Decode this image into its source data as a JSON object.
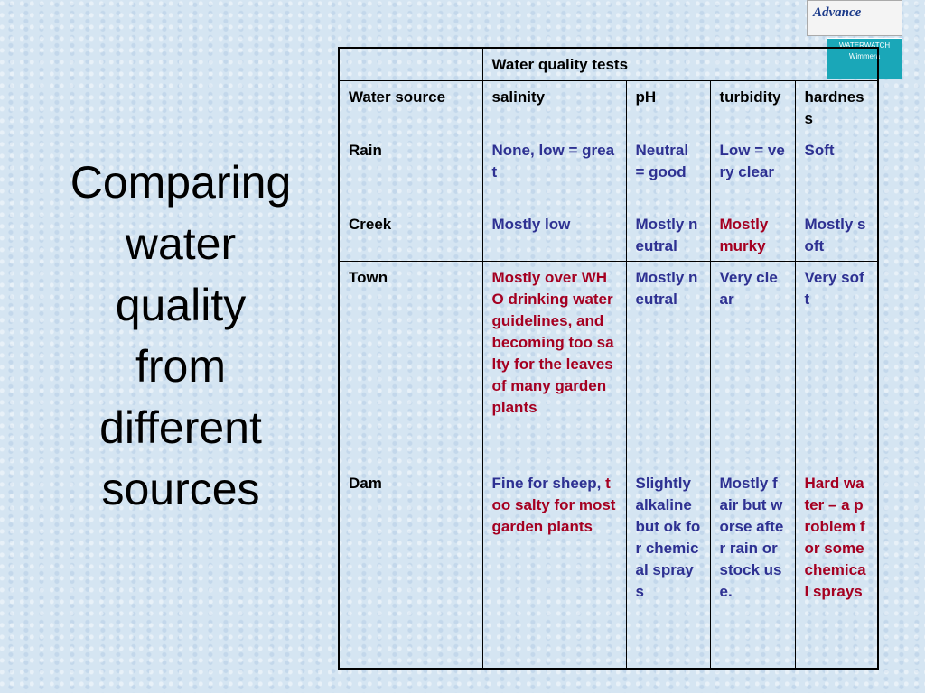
{
  "slide": {
    "title_lines": [
      "Comparing",
      "water",
      "quality",
      "from",
      "different",
      "sources"
    ],
    "logos": {
      "advance": "Advance",
      "waterwatch": "WATERWATCH",
      "region": "Wimmera"
    },
    "table": {
      "group_header": "Water quality tests",
      "columns": [
        "Water source",
        "salinity",
        "pH",
        "turbidity",
        "hardness"
      ],
      "rows": [
        [
          [
            {
              "text": "Rain",
              "color": "#000000"
            }
          ],
          [
            {
              "text": "None, low = great",
              "color": "#2e3192"
            }
          ],
          [
            {
              "text": "Neutral = good",
              "color": "#2e3192"
            }
          ],
          [
            {
              "text": "Low = very clear",
              "color": "#2e3192"
            }
          ],
          [
            {
              "text": "Soft",
              "color": "#2e3192"
            }
          ]
        ],
        [
          [
            {
              "text": "Creek",
              "color": "#000000"
            }
          ],
          [
            {
              "text": "Mostly low",
              "color": "#2e3192"
            }
          ],
          [
            {
              "text": "Mostly neutral",
              "color": "#2e3192"
            }
          ],
          [
            {
              "text": "Mostly murky",
              "color": "#a50021"
            }
          ],
          [
            {
              "text": "Mostly soft",
              "color": "#2e3192"
            }
          ]
        ],
        [
          [
            {
              "text": "Town",
              "color": "#000000"
            }
          ],
          [
            {
              "text": "Mostly over WHO drinking water guidelines, and becoming too salty for the leaves of many garden plants",
              "color": "#a50021"
            }
          ],
          [
            {
              "text": "Mostly neutral",
              "color": "#2e3192"
            }
          ],
          [
            {
              "text": "Very clear",
              "color": "#2e3192"
            }
          ],
          [
            {
              "text": "Very soft",
              "color": "#2e3192"
            }
          ]
        ],
        [
          [
            {
              "text": "Dam",
              "color": "#000000"
            }
          ],
          [
            {
              "text": "Fine for sheep,",
              "color": "#2e3192"
            },
            {
              "text": "too salty for most garden plants",
              "color": "#a50021"
            }
          ],
          [
            {
              "text": "Slightly alkaline but ok for chemical sprays",
              "color": "#2e3192"
            }
          ],
          [
            {
              "text": "Mostly fair but worse after rain or stock use.",
              "color": "#2e3192"
            }
          ],
          [
            {
              "text": "Hard water – a problem for some chemical sprays",
              "color": "#a50021"
            }
          ]
        ]
      ]
    }
  }
}
